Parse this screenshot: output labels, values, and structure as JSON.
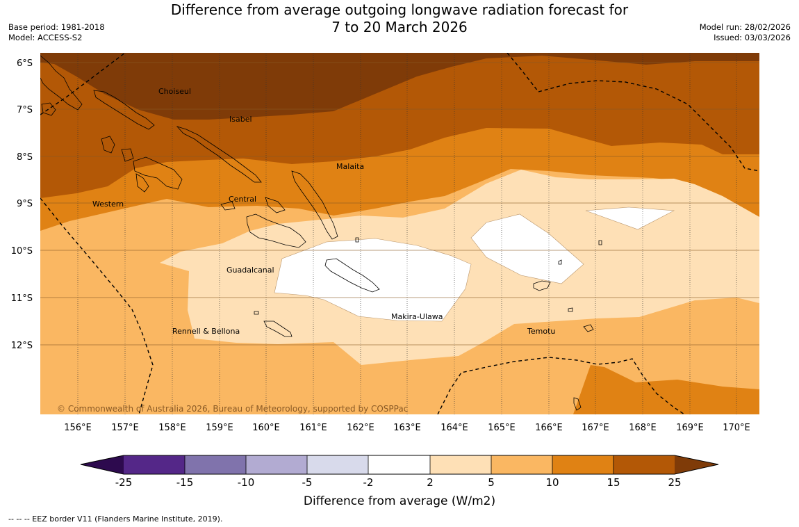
{
  "title_line1": "Difference from average outgoing longwave radiation forecast for",
  "title_line2": "7 to 20 March 2026",
  "base_period": "Base period: 1981-2018",
  "model": "Model: ACCESS-S2",
  "model_run": "Model run: 28/02/2026",
  "issued": "Issued: 03/03/2026",
  "lat_ticks": [
    "6°S",
    "7°S",
    "8°S",
    "9°S",
    "10°S",
    "11°S",
    "12°S"
  ],
  "lon_ticks": [
    "156°E",
    "157°E",
    "158°E",
    "159°E",
    "160°E",
    "161°E",
    "162°E",
    "163°E",
    "164°E",
    "165°E",
    "166°E",
    "167°E",
    "168°E",
    "169°E",
    "170°E"
  ],
  "places": {
    "choiseul": "Choiseul",
    "isabel": "Isabel",
    "malaita": "Malaita",
    "central": "Central",
    "western": "Western",
    "guadalcanal": "Guadalcanal",
    "makira": "Makira-Ulawa",
    "temotu": "Temotu",
    "rennell": "Rennell & Bellona"
  },
  "copyright": "© Commonwealth of Australia 2026, Bureau of Meteorology, supported by COSPPac",
  "colorbar": {
    "label": "Difference from average (W/m2)",
    "ticks": [
      "-25",
      "-15",
      "-10",
      "-5",
      "-2",
      "2",
      "5",
      "10",
      "15",
      "25"
    ],
    "colors": {
      "below": "#2d0a4e",
      "n25_15": "#542788",
      "n15_10": "#8073ac",
      "n10_5": "#b2abd2",
      "n5_2": "#d8daeb",
      "n2_2": "#ffffff",
      "p2_5": "#fee0b6",
      "p5_10": "#fab762",
      "p10_15": "#e08214",
      "p15_25": "#b35806",
      "above": "#7f3b08"
    }
  },
  "footnote": "-- -- -- EEZ border V11 (Flanders Marine Institute, 2019)."
}
